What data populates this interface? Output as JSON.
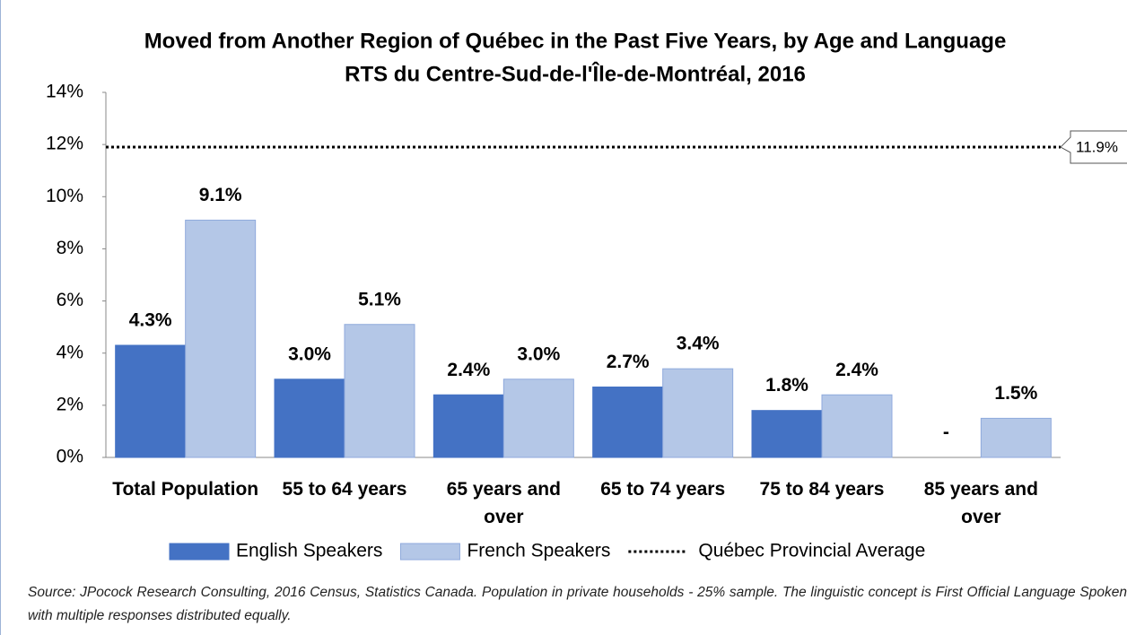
{
  "chart_data": {
    "type": "bar",
    "title": "Moved from Another Region of Québec in the Past Five Years, by Age and Language",
    "subtitle": "RTS du Centre-Sud-de-l'Île-de-Montréal, 2016",
    "categories": [
      "Total Population",
      "55 to 64 years",
      "65 years and over",
      "65 to 74 years",
      "75 to 84 years",
      "85 years and over"
    ],
    "series": [
      {
        "name": "English Speakers",
        "color": "#4472c4",
        "values": [
          4.3,
          3.0,
          2.4,
          2.7,
          1.8,
          null
        ],
        "value_labels": [
          "4.3%",
          "3.0%",
          "2.4%",
          "2.7%",
          "1.8%",
          "-"
        ]
      },
      {
        "name": "French Speakers",
        "color": "#b4c7e7",
        "values": [
          9.1,
          5.1,
          3.0,
          3.4,
          2.4,
          1.5
        ],
        "value_labels": [
          "9.1%",
          "5.1%",
          "3.0%",
          "3.4%",
          "2.4%",
          "1.5%"
        ]
      }
    ],
    "average": {
      "name": "Québec Provincial Average",
      "value": 11.9,
      "label": "11.9%"
    },
    "ylim": [
      0,
      14
    ],
    "yticks": [
      {
        "value": 0,
        "label": "0%"
      },
      {
        "value": 2,
        "label": "2%"
      },
      {
        "value": 4,
        "label": "4%"
      },
      {
        "value": 6,
        "label": "6%"
      },
      {
        "value": 8,
        "label": "8%"
      },
      {
        "value": 10,
        "label": "10%"
      },
      {
        "value": 12,
        "label": "12%"
      },
      {
        "value": 14,
        "label": "14%"
      }
    ],
    "grid": false,
    "legend": "bottom",
    "source": "Source: JPocock Research Consulting, 2016 Census, Statistics Canada. Population in private households - 25% sample. The linguistic concept is First Official Language Spoken with multiple responses distributed equally."
  }
}
